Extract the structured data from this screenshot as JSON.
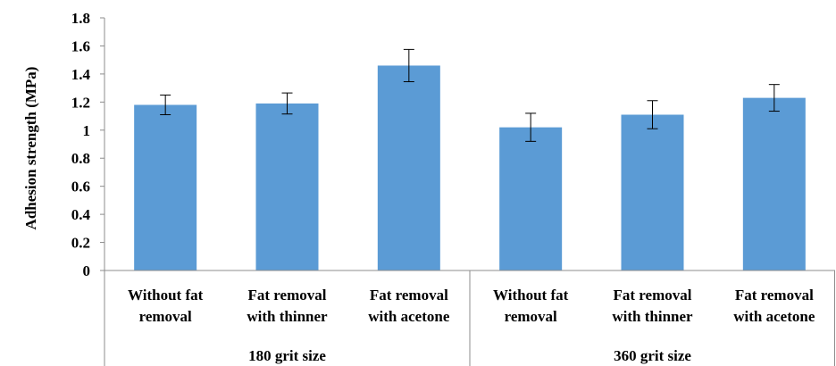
{
  "chart_data": {
    "type": "bar",
    "ylabel": "Adhesion strength (MPa)",
    "ylim": [
      0,
      1.8
    ],
    "yticks": [
      "0",
      "0.2",
      "0.4",
      "0.6",
      "0.8",
      "1",
      "1.2",
      "1.4",
      "1.6",
      "1.8"
    ],
    "grid": false,
    "categories": [
      [
        "Without fat",
        "removal"
      ],
      [
        "Fat removal",
        "with thinner"
      ],
      [
        "Fat removal",
        "with acetone"
      ],
      [
        "Without fat",
        "removal"
      ],
      [
        "Fat removal",
        "with thinner"
      ],
      [
        "Fat removal",
        "with acetone"
      ]
    ],
    "groups": [
      {
        "label": "180 grit size",
        "start": 0,
        "count": 3
      },
      {
        "label": "360 grit size",
        "start": 3,
        "count": 3
      }
    ],
    "values": [
      1.18,
      1.19,
      1.46,
      1.02,
      1.11,
      1.23
    ],
    "errors": [
      0.07,
      0.075,
      0.115,
      0.1,
      0.1,
      0.095
    ],
    "colors": {
      "bar": "#5b9bd5",
      "axis": "#8c8c8c",
      "errorbar": "#000000"
    }
  }
}
